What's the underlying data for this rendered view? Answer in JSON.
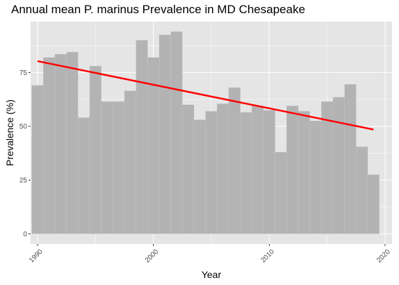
{
  "chart_data": {
    "type": "bar",
    "title": "Annual mean P. marinus Prevalence in MD Chesapeake",
    "xlabel": "Year",
    "ylabel": "Prevalence (%)",
    "x": [
      1990,
      1991,
      1992,
      1993,
      1994,
      1995,
      1996,
      1997,
      1998,
      1999,
      2000,
      2001,
      2002,
      2003,
      2004,
      2005,
      2006,
      2007,
      2008,
      2009,
      2010,
      2011,
      2012,
      2013,
      2014,
      2015,
      2016,
      2017,
      2018,
      2019
    ],
    "values": [
      69,
      82,
      83.5,
      84.5,
      54,
      78,
      61.5,
      61.5,
      66.5,
      90,
      82,
      92.5,
      94,
      60,
      53,
      57,
      60.5,
      68,
      56.5,
      59.5,
      57.5,
      38,
      59.5,
      57,
      52.5,
      61.5,
      63.5,
      69.5,
      40.5,
      27.5
    ],
    "bar_color": "#b3b3b3",
    "trend_line": {
      "x": [
        1990,
        2019
      ],
      "y": [
        80.3,
        48.5
      ],
      "color": "#ff0000"
    },
    "xlim": [
      1989.4,
      2020.6
    ],
    "ylim": [
      -4.7,
      98.7
    ],
    "x_ticks": [
      1990,
      2000,
      2010,
      2020
    ],
    "y_ticks": [
      0,
      25,
      50,
      75
    ],
    "grid": true,
    "panel_background": "#e5e5e5",
    "grid_color": "#ffffff",
    "legend": "none"
  }
}
